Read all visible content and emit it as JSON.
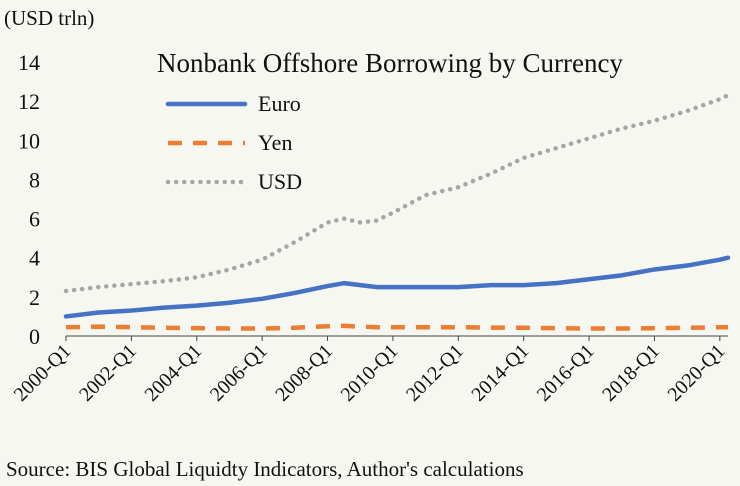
{
  "chart_data": {
    "type": "line",
    "title": "Nonbank Offshore Borrowing by Currency",
    "ylabel": "(USD trln)",
    "xlabel": "",
    "ylim": [
      0,
      14
    ],
    "yticks": [
      "0",
      "2",
      "4",
      "6",
      "8",
      "10",
      "12",
      "14"
    ],
    "xticks": [
      "2000-Q1",
      "2002-Q1",
      "2004-Q1",
      "2006-Q1",
      "2008-Q1",
      "2010-Q1",
      "2012-Q1",
      "2014-Q1",
      "2016-Q1",
      "2018-Q1",
      "2020-Q1"
    ],
    "grid": false,
    "legend_position": "top-left",
    "source": "Source: BIS Global Liquidty Indicators, Author's calculations",
    "x": [
      "2000-Q1",
      "2001-Q1",
      "2002-Q1",
      "2003-Q1",
      "2004-Q1",
      "2005-Q1",
      "2006-Q1",
      "2007-Q1",
      "2008-Q1",
      "2008-Q3",
      "2009-Q1",
      "2009-Q3",
      "2010-Q1",
      "2011-Q1",
      "2012-Q1",
      "2013-Q1",
      "2014-Q1",
      "2015-Q1",
      "2016-Q1",
      "2017-Q1",
      "2018-Q1",
      "2019-Q1",
      "2020-Q1",
      "2020-Q2"
    ],
    "series": [
      {
        "name": "Euro",
        "color": "#4472c4",
        "style": "solid",
        "values": [
          1.0,
          1.2,
          1.3,
          1.45,
          1.55,
          1.7,
          1.9,
          2.2,
          2.55,
          2.7,
          2.6,
          2.5,
          2.5,
          2.5,
          2.5,
          2.6,
          2.6,
          2.7,
          2.9,
          3.1,
          3.4,
          3.6,
          3.9,
          4.0
        ]
      },
      {
        "name": "Yen",
        "color": "#ed7d31",
        "style": "dashed",
        "values": [
          0.45,
          0.48,
          0.45,
          0.42,
          0.4,
          0.38,
          0.38,
          0.42,
          0.5,
          0.52,
          0.48,
          0.45,
          0.45,
          0.45,
          0.45,
          0.43,
          0.42,
          0.4,
          0.38,
          0.38,
          0.4,
          0.42,
          0.45,
          0.45
        ]
      },
      {
        "name": "USD",
        "color": "#a6a6a6",
        "style": "dotted",
        "values": [
          2.3,
          2.5,
          2.65,
          2.8,
          3.0,
          3.4,
          3.9,
          4.8,
          5.8,
          6.0,
          5.8,
          5.9,
          6.3,
          7.2,
          7.6,
          8.3,
          9.1,
          9.6,
          10.1,
          10.6,
          11.0,
          11.5,
          12.1,
          12.3
        ]
      }
    ]
  }
}
